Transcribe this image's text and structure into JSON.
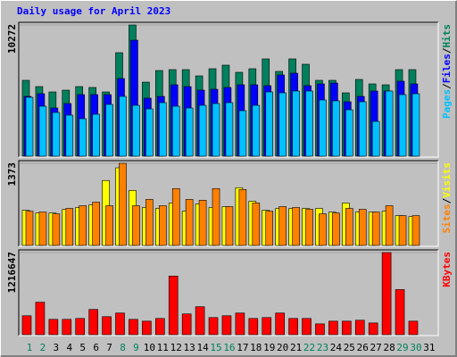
{
  "chart_data": [
    {
      "type": "bar",
      "title": "Daily usage for April 2023",
      "separator": "/",
      "ylim": [
        0,
        10272
      ],
      "yticks": [
        10272
      ],
      "series": [
        {
          "name": "Hits",
          "color": "#00805c",
          "values": [
            5940,
            5451,
            5031,
            5171,
            5451,
            5381,
            5031,
            8106,
            10272,
            5800,
            6708,
            6778,
            6778,
            6289,
            6848,
            7128,
            6569,
            6848,
            7617,
            6639,
            7617,
            7198,
            5940,
            5940,
            4961,
            6010,
            5660,
            5590,
            6778,
            6778,
            null
          ]
        },
        {
          "name": "Files",
          "color": "#0000ff",
          "values": [
            4682,
            4892,
            3774,
            4123,
            4822,
            4822,
            4822,
            6080,
            9084,
            4542,
            4682,
            5590,
            5451,
            5171,
            5241,
            5381,
            5590,
            5590,
            5521,
            6359,
            6499,
            5521,
            5660,
            5730,
            4263,
            4682,
            5101,
            5101,
            5870,
            5660,
            null
          ]
        },
        {
          "name": "Pages",
          "color": "#00c0ff",
          "values": [
            4612,
            3913,
            3424,
            3214,
            2935,
            3284,
            4053,
            4682,
            3983,
            3704,
            4193,
            3913,
            3774,
            3983,
            4123,
            4193,
            3564,
            3983,
            5031,
            4961,
            5101,
            5101,
            4402,
            4333,
            3634,
            4263,
            2725,
            5101,
            4822,
            4892,
            null
          ]
        }
      ]
    },
    {
      "type": "bar",
      "separator": "/",
      "ylim": [
        0,
        1373
      ],
      "yticks": [
        1373
      ],
      "series": [
        {
          "name": "Visits",
          "color": "#ffff00",
          "values": [
            588,
            543,
            543,
            604,
            634,
            679,
            1086,
            1298,
            920,
            634,
            619,
            709,
            573,
            694,
            634,
            649,
            966,
            739,
            588,
            619,
            619,
            619,
            619,
            558,
            709,
            558,
            558,
            573,
            498,
            483,
            null
          ]
        },
        {
          "name": "Sites",
          "color": "#ff8000",
          "values": [
            573,
            558,
            528,
            619,
            664,
            724,
            664,
            1373,
            664,
            770,
            664,
            951,
            770,
            755,
            951,
            649,
            936,
            709,
            573,
            649,
            634,
            604,
            528,
            543,
            619,
            604,
            558,
            664,
            498,
            498,
            null
          ]
        }
      ]
    },
    {
      "type": "bar",
      "ylim": [
        0,
        1216647
      ],
      "yticks": [
        1216647
      ],
      "categories": [
        "1",
        "2",
        "3",
        "4",
        "5",
        "6",
        "7",
        "8",
        "9",
        "10",
        "11",
        "12",
        "13",
        "14",
        "15",
        "16",
        "17",
        "18",
        "19",
        "20",
        "21",
        "22",
        "23",
        "24",
        "25",
        "26",
        "27",
        "28",
        "29",
        "30",
        "31"
      ],
      "category_colors": [
        "#00805c",
        "#00805c",
        "#000000",
        "#000000",
        "#000000",
        "#000000",
        "#000000",
        "#00805c",
        "#00805c",
        "#000000",
        "#000000",
        "#000000",
        "#000000",
        "#000000",
        "#00805c",
        "#00805c",
        "#000000",
        "#000000",
        "#000000",
        "#000000",
        "#000000",
        "#00805c",
        "#00805c",
        "#000000",
        "#000000",
        "#000000",
        "#000000",
        "#000000",
        "#00805c",
        "#00805c",
        "#000000"
      ],
      "series": [
        {
          "name": "KBytes",
          "color": "#ff0000",
          "values": [
            280770,
            481320,
            227290,
            227290,
            240660,
            374360,
            267400,
            320880,
            227290,
            200550,
            240660,
            869050,
            307510,
            414470,
            254030,
            280770,
            320880,
            240660,
            254030,
            320880,
            240660,
            240660,
            160440,
            200550,
            200550,
            213920,
            173810,
            1216647,
            668500,
            200550,
            null
          ]
        }
      ]
    }
  ]
}
